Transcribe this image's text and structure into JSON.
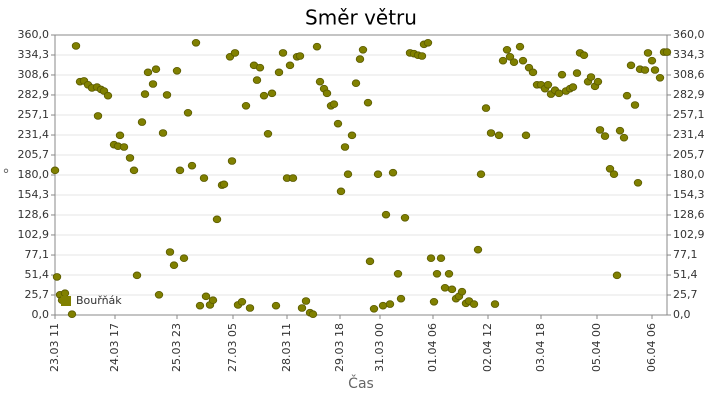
{
  "chart_data": {
    "type": "scatter",
    "title": "Směr větru",
    "xlabel": "Čas",
    "ylabel": "°",
    "xlim": [
      0,
      612
    ],
    "xticks": [
      {
        "value": 0,
        "label": "23.03 11"
      },
      {
        "value": 60,
        "label": "24.03 17"
      },
      {
        "value": 122,
        "label": "25.03 23"
      },
      {
        "value": 178,
        "label": "27.03 05"
      },
      {
        "value": 232,
        "label": "28.03 11"
      },
      {
        "value": 285,
        "label": "29.03 18"
      },
      {
        "value": 325,
        "label": "31.03 00"
      },
      {
        "value": 378,
        "label": "01.04 06"
      },
      {
        "value": 433,
        "label": "02.04 12"
      },
      {
        "value": 486,
        "label": "03.04 18"
      },
      {
        "value": 542,
        "label": "05.04 00"
      },
      {
        "value": 597,
        "label": "06.04 06"
      }
    ],
    "ylim": [
      0,
      360
    ],
    "yticks": [
      {
        "value": 0,
        "label": "0,0"
      },
      {
        "value": 25.7,
        "label": "25,7"
      },
      {
        "value": 51.4,
        "label": "51,4"
      },
      {
        "value": 77.1,
        "label": "77,1"
      },
      {
        "value": 102.9,
        "label": "102,9"
      },
      {
        "value": 128.6,
        "label": "128,6"
      },
      {
        "value": 154.3,
        "label": "154,3"
      },
      {
        "value": 180,
        "label": "180,0"
      },
      {
        "value": 205.7,
        "label": "205,7"
      },
      {
        "value": 231.4,
        "label": "231,4"
      },
      {
        "value": 257.1,
        "label": "257,1"
      },
      {
        "value": 282.9,
        "label": "282,9"
      },
      {
        "value": 308.6,
        "label": "308,6"
      },
      {
        "value": 334.3,
        "label": "334,3"
      },
      {
        "value": 360,
        "label": "360,0"
      }
    ],
    "grid": true,
    "legend": "lower left",
    "x": [
      0,
      2,
      5,
      7,
      10,
      17,
      21,
      25,
      29,
      33,
      37,
      42,
      43,
      46,
      49,
      53,
      59,
      63,
      65,
      69,
      75,
      79,
      82,
      87,
      90,
      93,
      98,
      101,
      104,
      108,
      112,
      115,
      119,
      122,
      125,
      129,
      133,
      137,
      141,
      145,
      149,
      151,
      155,
      158,
      162,
      167,
      169,
      175,
      177,
      180,
      183,
      187,
      191,
      195,
      199,
      202,
      205,
      209,
      213,
      217,
      221,
      224,
      228,
      232,
      235,
      238,
      242,
      245,
      247,
      251,
      255,
      258,
      262,
      265,
      269,
      272,
      276,
      279,
      283,
      286,
      290,
      293,
      297,
      301,
      305,
      308,
      313,
      315,
      319,
      323,
      328,
      331,
      335,
      338,
      343,
      346,
      350,
      355,
      359,
      363,
      367,
      369,
      373,
      376,
      379,
      382,
      386,
      390,
      394,
      397,
      401,
      404,
      407,
      411,
      414,
      419,
      423,
      426,
      431,
      436,
      440,
      444,
      448,
      452,
      455,
      459,
      465,
      468,
      471,
      474,
      478,
      482,
      486,
      490,
      493,
      496,
      500,
      504,
      507,
      511,
      515,
      518,
      522,
      525,
      529,
      533,
      536,
      540,
      543,
      545,
      550,
      555,
      559,
      562,
      565,
      569,
      572,
      576,
      580,
      583,
      585,
      590,
      593,
      597,
      600,
      605,
      609,
      612
    ],
    "series": [
      {
        "name": "Bouřňák",
        "color": "#808000",
        "values": [
          186,
          49,
          26,
          19,
          28,
          1,
          346,
          300,
          301,
          296,
          292,
          293,
          256,
          290,
          288,
          282,
          219,
          217,
          231,
          216,
          202,
          186,
          51,
          248,
          284,
          312,
          297,
          316,
          26,
          234,
          283,
          81,
          64,
          314,
          186,
          73,
          260,
          192,
          350,
          12,
          176,
          24,
          13,
          19,
          123,
          167,
          168,
          332,
          198,
          337,
          13,
          17,
          269,
          9,
          321,
          302,
          318,
          282,
          233,
          285,
          12,
          312,
          337,
          176,
          321,
          176,
          332,
          333,
          9,
          18,
          3,
          1,
          345,
          300,
          291,
          285,
          269,
          271,
          246,
          159,
          216,
          181,
          231,
          298,
          329,
          341,
          273,
          69,
          8,
          181,
          12,
          129,
          14,
          183,
          53,
          21,
          125,
          337,
          336,
          334,
          333,
          348,
          350,
          73,
          17,
          53,
          73,
          35,
          53,
          33,
          21,
          24,
          30,
          15,
          18,
          14,
          84,
          181,
          266,
          234,
          14,
          231,
          327,
          341,
          332,
          325,
          345,
          327,
          231,
          318,
          312,
          296,
          296,
          291,
          296,
          284,
          289,
          285,
          309,
          288,
          291,
          293,
          311,
          337,
          334,
          300,
          306,
          294,
          300,
          238,
          230,
          188,
          181,
          51,
          237,
          228,
          282,
          321,
          270,
          170,
          316,
          315,
          337,
          327,
          315,
          305,
          338,
          338
        ]
      }
    ]
  }
}
